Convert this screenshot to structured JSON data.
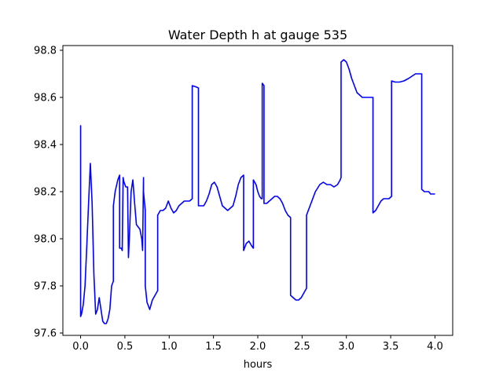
{
  "chart_data": {
    "type": "line",
    "title": "Water Depth h at gauge 535",
    "xlabel": "hours",
    "ylabel": "",
    "xlim": [
      -0.2,
      4.2
    ],
    "ylim": [
      97.59,
      98.82
    ],
    "xticks": [
      0.0,
      0.5,
      1.0,
      1.5,
      2.0,
      2.5,
      3.0,
      3.5,
      4.0
    ],
    "xtick_labels": [
      "0.0",
      "0.5",
      "1.0",
      "1.5",
      "2.0",
      "2.5",
      "3.0",
      "3.5",
      "4.0"
    ],
    "yticks": [
      97.6,
      97.8,
      98.0,
      98.2,
      98.4,
      98.6,
      98.8
    ],
    "ytick_labels": [
      "97.6",
      "97.8",
      "98.0",
      "98.2",
      "98.4",
      "98.6",
      "98.8"
    ],
    "grid": false,
    "legend": "none",
    "color": "#0000ff",
    "series": [
      {
        "x": [
          0.0,
          0.0,
          0.0,
          0.01,
          0.03,
          0.05,
          0.07,
          0.09,
          0.11,
          0.13,
          0.15,
          0.17,
          0.19,
          0.21,
          0.23,
          0.25,
          0.27,
          0.29,
          0.31,
          0.33,
          0.35,
          0.37,
          0.37,
          0.39,
          0.42,
          0.44,
          0.44,
          0.46,
          0.47,
          0.48,
          0.49,
          0.51,
          0.53,
          0.54,
          0.55,
          0.57,
          0.59,
          0.61,
          0.63,
          0.65,
          0.67,
          0.69,
          0.7,
          0.71,
          0.71,
          0.73,
          0.73,
          0.75,
          0.78,
          0.81,
          0.84,
          0.87,
          0.87,
          0.9,
          0.93,
          0.96,
          0.99,
          1.02,
          1.05,
          1.08,
          1.11,
          1.14,
          1.17,
          1.2,
          1.23,
          1.26,
          1.26,
          1.3,
          1.33,
          1.33,
          1.36,
          1.39,
          1.42,
          1.45,
          1.48,
          1.51,
          1.54,
          1.57,
          1.6,
          1.63,
          1.66,
          1.69,
          1.72,
          1.75,
          1.78,
          1.81,
          1.84,
          1.84,
          1.87,
          1.9,
          1.93,
          1.95,
          1.95,
          1.98,
          2.0,
          2.02,
          2.04,
          2.05,
          2.05,
          2.07,
          2.07,
          2.1,
          2.13,
          2.16,
          2.19,
          2.22,
          2.25,
          2.28,
          2.31,
          2.34,
          2.37,
          2.37,
          2.4,
          2.43,
          2.46,
          2.49,
          2.52,
          2.55,
          2.55,
          2.6,
          2.65,
          2.7,
          2.74,
          2.78,
          2.82,
          2.86,
          2.9,
          2.93,
          2.94,
          2.94,
          2.97,
          3.0,
          3.03,
          3.06,
          3.09,
          3.12,
          3.15,
          3.18,
          3.21,
          3.24,
          3.27,
          3.3,
          3.3,
          3.33,
          3.36,
          3.39,
          3.42,
          3.45,
          3.48,
          3.51,
          3.51,
          3.55,
          3.6,
          3.65,
          3.7,
          3.74,
          3.78,
          3.81,
          3.84,
          3.85,
          3.85,
          3.88,
          3.9,
          3.93,
          3.95,
          3.97,
          4.0
        ],
        "y": [
          98.0,
          98.48,
          97.67,
          97.68,
          97.72,
          97.8,
          97.97,
          98.15,
          98.32,
          98.15,
          97.85,
          97.68,
          97.7,
          97.75,
          97.7,
          97.65,
          97.64,
          97.64,
          97.66,
          97.7,
          97.8,
          97.82,
          98.14,
          98.2,
          98.25,
          98.27,
          97.96,
          97.96,
          97.95,
          98.26,
          98.24,
          98.22,
          98.22,
          97.92,
          98.0,
          98.2,
          98.25,
          98.15,
          98.06,
          98.05,
          98.04,
          98.0,
          97.95,
          98.26,
          98.2,
          98.12,
          97.8,
          97.73,
          97.7,
          97.74,
          97.76,
          97.78,
          98.1,
          98.12,
          98.12,
          98.13,
          98.16,
          98.13,
          98.11,
          98.12,
          98.14,
          98.15,
          98.16,
          98.16,
          98.16,
          98.17,
          98.65,
          98.645,
          98.64,
          98.14,
          98.14,
          98.14,
          98.16,
          98.19,
          98.23,
          98.24,
          98.22,
          98.18,
          98.14,
          98.13,
          98.12,
          98.13,
          98.14,
          98.18,
          98.23,
          98.26,
          98.27,
          97.95,
          97.98,
          97.99,
          97.97,
          97.96,
          98.25,
          98.23,
          98.2,
          98.18,
          98.17,
          98.17,
          98.66,
          98.65,
          98.15,
          98.15,
          98.16,
          98.17,
          98.18,
          98.18,
          98.17,
          98.15,
          98.12,
          98.1,
          98.09,
          97.76,
          97.75,
          97.74,
          97.74,
          97.75,
          97.77,
          97.79,
          98.1,
          98.15,
          98.2,
          98.23,
          98.24,
          98.23,
          98.23,
          98.22,
          98.23,
          98.25,
          98.26,
          98.75,
          98.76,
          98.75,
          98.72,
          98.68,
          98.65,
          98.62,
          98.61,
          98.6,
          98.6,
          98.6,
          98.6,
          98.6,
          98.11,
          98.12,
          98.14,
          98.16,
          98.17,
          98.17,
          98.17,
          98.18,
          98.67,
          98.665,
          98.665,
          98.67,
          98.68,
          98.69,
          98.7,
          98.7,
          98.7,
          98.7,
          98.21,
          98.2,
          98.2,
          98.2,
          98.19,
          98.19,
          98.19
        ]
      }
    ]
  }
}
